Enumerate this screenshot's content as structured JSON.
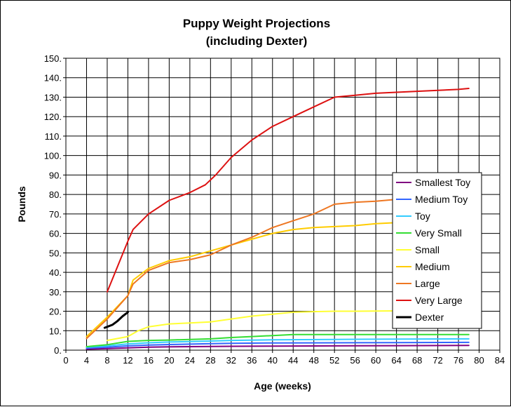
{
  "chart_data": {
    "type": "line",
    "title": "Puppy Weight Projections",
    "subtitle": "(including Dexter)",
    "xlabel": "Age (weeks)",
    "ylabel": "Pounds",
    "xlim": [
      0,
      84
    ],
    "ylim": [
      0,
      150
    ],
    "x_ticks": [
      "0",
      "4",
      "8",
      "12",
      "16",
      "20",
      "24",
      "28",
      "32",
      "36",
      "40",
      "44",
      "48",
      "52",
      "56",
      "60",
      "64",
      "68",
      "72",
      "76",
      "80",
      "84"
    ],
    "y_ticks": [
      "0.",
      "10.",
      "20.",
      "30.",
      "40.",
      "50.",
      "60.",
      "70.",
      "80.",
      "90.",
      "100.",
      "110.",
      "120.",
      "130.",
      "140.",
      "150."
    ],
    "grid": true,
    "legend_position": "right",
    "series": [
      {
        "name": "Smallest Toy",
        "color": "#800080",
        "width": 2,
        "points": [
          [
            4,
            0.5
          ],
          [
            8,
            0.8
          ],
          [
            12,
            1.2
          ],
          [
            16,
            1.5
          ],
          [
            20,
            1.7
          ],
          [
            24,
            1.8
          ],
          [
            28,
            1.9
          ],
          [
            32,
            2.0
          ],
          [
            40,
            2.1
          ],
          [
            52,
            2.2
          ],
          [
            64,
            2.3
          ],
          [
            78,
            2.4
          ]
        ]
      },
      {
        "name": "Medium Toy",
        "color": "#3366ff",
        "width": 2,
        "points": [
          [
            4,
            1.0
          ],
          [
            8,
            1.5
          ],
          [
            12,
            2.2
          ],
          [
            16,
            2.6
          ],
          [
            20,
            2.9
          ],
          [
            24,
            3.1
          ],
          [
            28,
            3.3
          ],
          [
            32,
            3.5
          ],
          [
            40,
            3.7
          ],
          [
            52,
            3.8
          ],
          [
            64,
            3.9
          ],
          [
            78,
            4.0
          ]
        ]
      },
      {
        "name": "Toy",
        "color": "#33ccff",
        "width": 2,
        "points": [
          [
            4,
            1.5
          ],
          [
            8,
            2.2
          ],
          [
            12,
            3.2
          ],
          [
            16,
            3.8
          ],
          [
            20,
            4.2
          ],
          [
            24,
            4.4
          ],
          [
            28,
            4.7
          ],
          [
            32,
            5.0
          ],
          [
            40,
            5.3
          ],
          [
            52,
            5.5
          ],
          [
            64,
            5.7
          ],
          [
            78,
            5.8
          ]
        ]
      },
      {
        "name": "Very Small",
        "color": "#33dd33",
        "width": 2,
        "points": [
          [
            4,
            1.8
          ],
          [
            8,
            2.8
          ],
          [
            12,
            4.5
          ],
          [
            16,
            5.0
          ],
          [
            20,
            5.2
          ],
          [
            24,
            5.5
          ],
          [
            28,
            5.8
          ],
          [
            32,
            6.5
          ],
          [
            36,
            7.0
          ],
          [
            40,
            7.5
          ],
          [
            44,
            8.0
          ],
          [
            52,
            8.0
          ],
          [
            64,
            8.0
          ],
          [
            78,
            8.0
          ]
        ]
      },
      {
        "name": "Small",
        "color": "#ffff33",
        "width": 2,
        "points": [
          [
            8,
            5.0
          ],
          [
            12,
            7.0
          ],
          [
            14,
            10.0
          ],
          [
            16,
            12.0
          ],
          [
            20,
            13.5
          ],
          [
            24,
            14.0
          ],
          [
            28,
            14.5
          ],
          [
            32,
            16.0
          ],
          [
            36,
            17.5
          ],
          [
            40,
            18.5
          ],
          [
            44,
            19.5
          ],
          [
            48,
            19.8
          ],
          [
            52,
            20.0
          ],
          [
            56,
            20.0
          ],
          [
            64,
            20.2
          ],
          [
            68,
            20.3
          ]
        ]
      },
      {
        "name": "Medium",
        "color": "#ffcc00",
        "width": 2,
        "points": [
          [
            4,
            7.0
          ],
          [
            8,
            17.0
          ],
          [
            12,
            28.0
          ],
          [
            13,
            36.0
          ],
          [
            16,
            42.0
          ],
          [
            20,
            46.0
          ],
          [
            24,
            48.0
          ],
          [
            28,
            51.0
          ],
          [
            32,
            54.0
          ],
          [
            36,
            57.0
          ],
          [
            40,
            60.0
          ],
          [
            44,
            62.0
          ],
          [
            48,
            63.0
          ],
          [
            52,
            63.5
          ],
          [
            56,
            64.0
          ],
          [
            60,
            65.0
          ],
          [
            64,
            65.5
          ],
          [
            68,
            66.0
          ]
        ]
      },
      {
        "name": "Large",
        "color": "#ee7722",
        "width": 2,
        "points": [
          [
            4,
            6.0
          ],
          [
            8,
            16.0
          ],
          [
            12,
            28.0
          ],
          [
            13,
            34.0
          ],
          [
            16,
            41.0
          ],
          [
            20,
            45.0
          ],
          [
            24,
            46.5
          ],
          [
            28,
            49.0
          ],
          [
            32,
            54.0
          ],
          [
            36,
            58.0
          ],
          [
            40,
            63.0
          ],
          [
            44,
            66.5
          ],
          [
            48,
            70.0
          ],
          [
            52,
            75.0
          ],
          [
            56,
            76.0
          ],
          [
            60,
            76.5
          ],
          [
            64,
            77.5
          ],
          [
            68,
            78.0
          ]
        ]
      },
      {
        "name": "Very Large",
        "color": "#dd1111",
        "width": 2,
        "points": [
          [
            8,
            30.0
          ],
          [
            12,
            56.0
          ],
          [
            13,
            62.0
          ],
          [
            16,
            70.0
          ],
          [
            20,
            77.0
          ],
          [
            24,
            81.0
          ],
          [
            27,
            85.0
          ],
          [
            29,
            90.0
          ],
          [
            32,
            99.0
          ],
          [
            36,
            108.0
          ],
          [
            40,
            115.0
          ],
          [
            44,
            120.0
          ],
          [
            48,
            125.0
          ],
          [
            52,
            130.0
          ],
          [
            56,
            131.0
          ],
          [
            60,
            132.0
          ],
          [
            64,
            132.5
          ],
          [
            68,
            133.0
          ],
          [
            72,
            133.5
          ],
          [
            76,
            134.0
          ],
          [
            78,
            134.5
          ]
        ]
      },
      {
        "name": "Dexter",
        "color": "#000000",
        "width": 3,
        "points": [
          [
            7.5,
            11.5
          ],
          [
            9,
            13.0
          ],
          [
            10,
            15.0
          ],
          [
            11,
            17.5
          ],
          [
            12,
            19.5
          ]
        ]
      }
    ]
  }
}
